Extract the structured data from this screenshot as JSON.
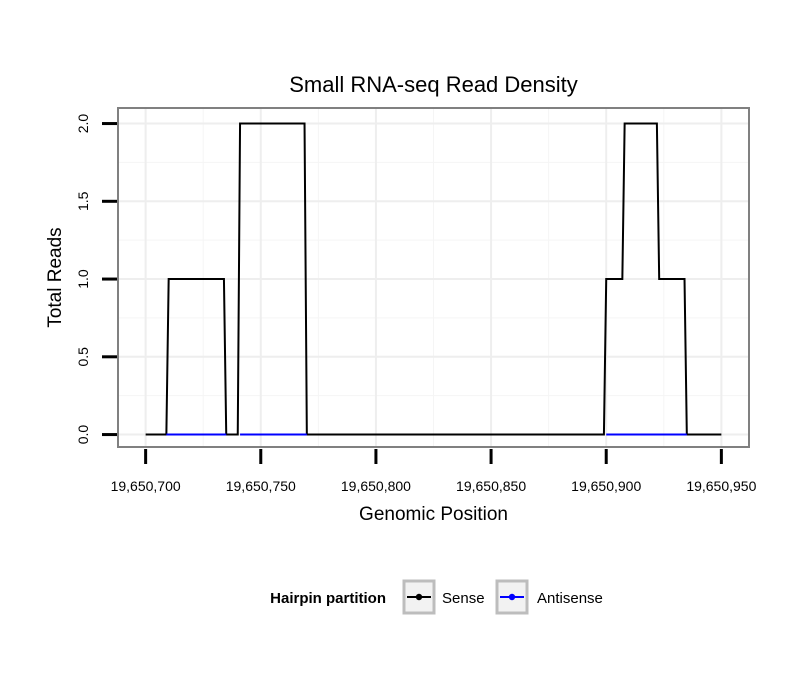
{
  "chart_data": {
    "type": "line",
    "title": "Small RNA-seq Read Density",
    "xlabel": "Genomic Position",
    "ylabel": "Total Reads",
    "xlim": [
      19650688,
      19650962
    ],
    "ylim": [
      -0.08,
      2.1
    ],
    "x_ticks": [
      19650700,
      19650750,
      19650800,
      19650850,
      19650900,
      19650950
    ],
    "x_tick_labels": [
      "19,650,700",
      "19,650,750",
      "19,650,800",
      "19,650,850",
      "19,650,900",
      "19,650,950"
    ],
    "y_ticks": [
      0.0,
      0.5,
      1.0,
      1.5,
      2.0
    ],
    "y_tick_labels": [
      "0.0",
      "0.5",
      "1.0",
      "1.5",
      "2.0"
    ],
    "grid": true,
    "legend": {
      "title": "Hairpin partition",
      "position": "bottom",
      "entries": [
        "Sense",
        "Antisense"
      ]
    },
    "series": [
      {
        "name": "Sense",
        "color": "#000000",
        "x": [
          19650700,
          19650709,
          19650710,
          19650734,
          19650735,
          19650740,
          19650741,
          19650769,
          19650770,
          19650899,
          19650900,
          19650907,
          19650908,
          19650922,
          19650923,
          19650934,
          19650935,
          19650950
        ],
        "values": [
          0,
          0,
          1,
          1,
          0,
          0,
          2,
          2,
          0,
          0,
          1,
          1,
          2,
          2,
          1,
          1,
          0,
          0
        ]
      },
      {
        "name": "Antisense",
        "color": "#0000ff",
        "x": [
          19650709,
          19650735,
          19650741,
          19650770,
          19650900,
          19650935
        ],
        "values": [
          0,
          0,
          0,
          0,
          0,
          0
        ]
      }
    ]
  }
}
